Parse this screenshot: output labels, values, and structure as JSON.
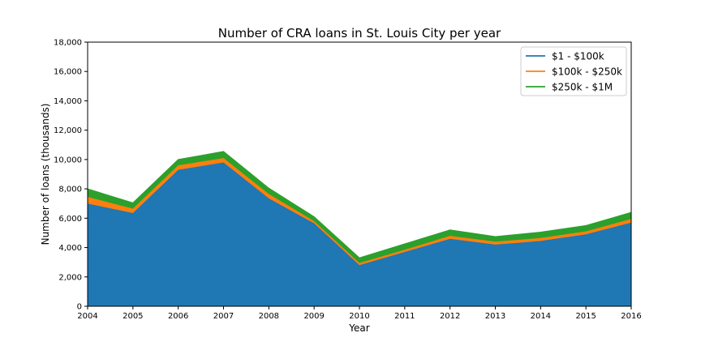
{
  "chart_data": {
    "type": "area",
    "stacked": true,
    "title": "Number of CRA loans in St. Louis City per year",
    "xlabel": "Year",
    "ylabel": "Number of loans (thousands)",
    "ylim": [
      0,
      18000
    ],
    "yticks": [
      0,
      2000,
      4000,
      6000,
      8000,
      10000,
      12000,
      14000,
      16000,
      18000
    ],
    "ytick_labels": [
      "0",
      "2,000",
      "4,000",
      "6,000",
      "8,000",
      "10,000",
      "12,000",
      "14,000",
      "16,000",
      "18,000"
    ],
    "x": [
      "2004",
      "2005",
      "2006",
      "2007",
      "2008",
      "2009",
      "2010",
      "2011",
      "2012",
      "2013",
      "2014",
      "2015",
      "2016"
    ],
    "grid": false,
    "legend_position": "top-right",
    "series": [
      {
        "name": "$1 - $100k",
        "color": "#1f77b4",
        "values": [
          7000,
          6350,
          9300,
          9800,
          7350,
          5650,
          2800,
          3700,
          4600,
          4200,
          4450,
          4900,
          5700
        ]
      },
      {
        "name": "$100k - $250k",
        "color": "#ff7f0e",
        "values": [
          450,
          300,
          300,
          300,
          300,
          150,
          150,
          150,
          200,
          200,
          200,
          200,
          250
        ]
      },
      {
        "name": "$250k - $1M",
        "color": "#2ca02c",
        "values": [
          550,
          400,
          400,
          450,
          400,
          300,
          350,
          400,
          400,
          350,
          400,
          400,
          450
        ]
      }
    ]
  }
}
